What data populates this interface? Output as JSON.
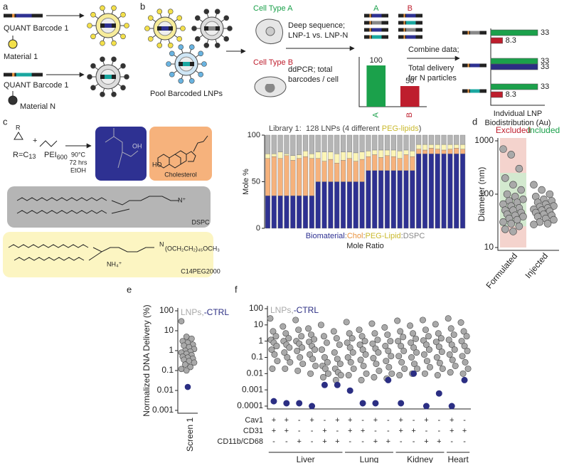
{
  "diagram": {
    "panel_labels": [
      "a",
      "b",
      "c",
      "d",
      "e",
      "f"
    ],
    "a": {
      "barcode_1": "QUANT Barcode 1",
      "material_1": "Material 1",
      "barcode_n": "QUANT Barcode 1",
      "material_n": "Material N"
    },
    "b": {
      "pool": "Pool Barcoded LNPs",
      "cell_a": "Cell Type A",
      "cell_b": "Cell Type B",
      "deep_sequence": [
        "Deep sequence;",
        "LNP-1 vs. LNP-N"
      ],
      "ddpcr": [
        "ddPCR; total",
        "barcodes / cell"
      ],
      "combine": [
        "Combine data;",
        "Total delivery",
        "for N particles"
      ]
    },
    "c": {
      "r_atom": "R",
      "r_group": "R=C",
      "r_subscript": "13",
      "plus": "+",
      "pei": "PEI",
      "pei_subscript": "600",
      "conditions": [
        "90°C",
        "72 hrs",
        "EtOH"
      ],
      "hydroxyl": "OH",
      "hydroxyl_2": "HO",
      "cholesterol": "Cholesterol",
      "dspc": "DSPC",
      "peg": "C14PEG2000",
      "peg_chain": "(OCH₂CH₂)₄₅OCH₃",
      "ammonium": "NH₄⁺",
      "amine": "N",
      "nitrogen_plus": "N⁺"
    }
  },
  "chart_data": [
    {
      "type": "bar",
      "categories": [
        "A",
        "B"
      ],
      "values": [
        100,
        50
      ],
      "colors": [
        "#1ba14b",
        "#be1e2d"
      ],
      "ylim": [
        0,
        100
      ]
    },
    {
      "type": "barh",
      "values": [
        33,
        8.3,
        33,
        33,
        33,
        8.3
      ],
      "colors": [
        "#1ba14b",
        "#be1e2d",
        "#1ba14b",
        "#2b2e83",
        "#1ba14b",
        "#be1e2d"
      ],
      "xlim": [
        0,
        33
      ],
      "xlabel": [
        "Indvidual LNP",
        "Biodistribution (Au)"
      ]
    },
    {
      "type": "stacked_bar",
      "title_runs": [
        {
          "text": "Library 1:  128 LNPs (4 different ",
          "color": "#444"
        },
        {
          "text": "PEG-lipids",
          "color": "#c9b92c"
        },
        {
          "text": ")",
          "color": "#444"
        }
      ],
      "ylabel": "Mole %",
      "xlabel": "Mole Ratio",
      "ylim": [
        0,
        100
      ],
      "yticks": [
        0,
        50,
        100
      ],
      "legend_separator": ":",
      "series": [
        {
          "name": "Biomaterial",
          "color": "#2e3192",
          "text_color": "#2e3192",
          "values": [
            35,
            35,
            35,
            35,
            35,
            35,
            35,
            35,
            50,
            50,
            50,
            50,
            50,
            50,
            50,
            50,
            62,
            62,
            62,
            62,
            62,
            62,
            62,
            62,
            80,
            80,
            80,
            80,
            80,
            80,
            80,
            80
          ]
        },
        {
          "name": "Chol",
          "color": "#f6b27c",
          "text_color": "#e8913c",
          "values": [
            40,
            42,
            40,
            43,
            38,
            40,
            42,
            40,
            25,
            22,
            24,
            20,
            23,
            25,
            22,
            24,
            15,
            17,
            14,
            16,
            15,
            13,
            17,
            15,
            5,
            4,
            6,
            5,
            4,
            5,
            6,
            5
          ]
        },
        {
          "name": "PEG-Lipid",
          "color": "#fcf5b6",
          "text_color": "#c9b92c",
          "values": [
            5,
            3,
            7,
            2,
            5,
            4,
            6,
            5,
            7,
            10,
            8,
            10,
            9,
            7,
            9,
            8,
            6,
            5,
            8,
            6,
            7,
            8,
            5,
            6,
            5,
            6,
            4,
            5,
            6,
            5,
            4,
            5
          ]
        },
        {
          "name": "DSPC",
          "color": "#b5b5b5",
          "text_color": "#888888",
          "values": [
            20,
            20,
            18,
            20,
            22,
            21,
            17,
            20,
            18,
            18,
            18,
            20,
            18,
            18,
            19,
            18,
            17,
            16,
            16,
            16,
            16,
            17,
            16,
            17,
            10,
            10,
            10,
            10,
            10,
            10,
            10,
            10
          ]
        }
      ]
    },
    {
      "type": "strip",
      "log": true,
      "ylabel": "Diameter (nm)",
      "categories": [
        "Formulated",
        "Injected"
      ],
      "ylim": [
        10,
        1000
      ],
      "yticks": [
        10,
        100,
        1000
      ],
      "regions": [
        {
          "label": "Excluded",
          "color": "#be1e2d",
          "fill": "#f4d3cd"
        },
        {
          "label": "Included",
          "color": "#1ba14b",
          "fill": "#d3e9cf",
          "range": [
            25,
            250
          ]
        }
      ],
      "series": [
        {
          "color": "#a9a9a9",
          "values": [
            [
              700,
              550,
              300,
              200,
              150,
              120,
              100,
              90,
              80,
              75,
              70,
              65,
              60,
              55,
              50,
              50,
              45,
              42,
              40,
              38,
              35,
              33,
              30,
              28,
              25,
              22,
              20
            ],
            [
              150,
              120,
              100,
              90,
              80,
              75,
              70,
              65,
              60,
              58,
              55,
              52,
              50,
              48,
              45,
              42,
              40,
              38,
              35,
              33,
              30,
              28,
              27
            ]
          ]
        }
      ]
    },
    {
      "type": "strip",
      "log": true,
      "ylabel": "Normalized DNA Delivery (%)",
      "categories": [
        "Screen 1"
      ],
      "ylim": [
        0.001,
        100
      ],
      "yticks": [
        0.001,
        0.01,
        0.1,
        1,
        10,
        100
      ],
      "legend_separator": ",",
      "series": [
        {
          "name": "LNPs",
          "color": "#a9a9a9",
          "values": [
            [
              30,
              5,
              4,
              3,
              2.5,
              2,
              1.8,
              1.5,
              1.2,
              1,
              0.9,
              0.8,
              0.7,
              0.6,
              0.5,
              0.45,
              0.4,
              0.35,
              0.3,
              0.25,
              0.2,
              0.15,
              0.12,
              0.1
            ]
          ]
        },
        {
          "name": "-CTRL",
          "color": "#2b2e83",
          "values": [
            [
              0.015
            ]
          ]
        }
      ]
    },
    {
      "type": "strip",
      "log": true,
      "categories": [
        null,
        null,
        null,
        null,
        null,
        null,
        null,
        null,
        null,
        null,
        null,
        null,
        null,
        null,
        null,
        null
      ],
      "ylim": [
        0.0001,
        100
      ],
      "yticks": [
        0.0001,
        0.001,
        0.01,
        0.1,
        1,
        10,
        100
      ],
      "legend_separator": ",",
      "series": [
        {
          "name": "LNPs",
          "color": "#a9a9a9",
          "values": [
            [
              25,
              4,
              2,
              1.2,
              0.8,
              0.5,
              0.3,
              0.15,
              0.06,
              0.02
            ],
            [
              8,
              3,
              1.5,
              1,
              0.6,
              0.4,
              0.2,
              0.1,
              0.05,
              0.02
            ],
            [
              20,
              5,
              2,
              1,
              0.7,
              0.4,
              0.25,
              0.1,
              0.04,
              0.015
            ],
            [
              6,
              2.5,
              1.3,
              0.9,
              0.5,
              0.3,
              0.15,
              0.08,
              0.03,
              0.01
            ],
            [
              10,
              2,
              0.8,
              0.3,
              0.1,
              0.05,
              0.03,
              0.02,
              0.01,
              0.006
            ],
            [
              4,
              1.5,
              0.6,
              0.2,
              0.08,
              0.04,
              0.02,
              0.012,
              0.008,
              0.004
            ],
            [
              15,
              3,
              1.5,
              0.8,
              0.4,
              0.2,
              0.1,
              0.05,
              0.02,
              0.008
            ],
            [
              5,
              2,
              1,
              0.6,
              0.3,
              0.15,
              0.07,
              0.03,
              0.01,
              0.004
            ],
            [
              12,
              3,
              1.2,
              0.7,
              0.35,
              0.2,
              0.09,
              0.04,
              0.015,
              0.006
            ],
            [
              7,
              2.5,
              1,
              0.5,
              0.25,
              0.12,
              0.06,
              0.025,
              0.01,
              0.005
            ],
            [
              18,
              4,
              1.8,
              1,
              0.5,
              0.25,
              0.12,
              0.05,
              0.02,
              0.008
            ],
            [
              9,
              3,
              1.4,
              0.8,
              0.4,
              0.2,
              0.1,
              0.04,
              0.02,
              0.01
            ],
            [
              20,
              5,
              2,
              1.1,
              0.6,
              0.3,
              0.15,
              0.06,
              0.025,
              0.01
            ],
            [
              11,
              3,
              1.5,
              0.9,
              0.45,
              0.22,
              0.1,
              0.045,
              0.02,
              0.008
            ],
            [
              25,
              6,
              2.5,
              1.2,
              0.6,
              0.3,
              0.15,
              0.07,
              0.03,
              0.012
            ],
            [
              14,
              4,
              2,
              1,
              0.5,
              0.25,
              0.12,
              0.05,
              0.02,
              0.01
            ]
          ]
        },
        {
          "name": "-CTRL",
          "color": "#2b2e83",
          "values": [
            [
              0.0002
            ],
            [
              0.00015
            ],
            [
              0.00015
            ],
            [
              0.0001
            ],
            [
              0.002
            ],
            [
              0.002
            ],
            [
              0.0009
            ],
            [
              0.00015
            ],
            [
              0.00015
            ],
            [
              0.004
            ],
            [
              0.00015
            ],
            [
              0.01
            ],
            [
              0.0001
            ],
            [
              0.0006
            ],
            [
              0.0001
            ],
            [
              0.004
            ]
          ]
        }
      ],
      "conditions": [
        {
          "label": "Cav1",
          "signs": [
            "+",
            "+",
            "-",
            "+",
            "-",
            "+",
            "+",
            "-",
            "+",
            "-",
            "+",
            "-",
            "+",
            "-",
            "+",
            "-"
          ]
        },
        {
          "label": "CD31",
          "signs": [
            "+",
            "+",
            "-",
            "-",
            "+",
            "-",
            "+",
            "+",
            "-",
            "-",
            "+",
            "+",
            "-",
            "-",
            "+",
            "+"
          ]
        },
        {
          "label": "CD11b/CD68",
          "signs": [
            "-",
            "-",
            "+",
            "-",
            "+",
            "+",
            "-",
            "-",
            "+",
            "+",
            "-",
            "-",
            "+",
            "+",
            "-",
            "-"
          ]
        }
      ],
      "groups": [
        {
          "label": "Liver",
          "count": 6
        },
        {
          "label": "Lung",
          "count": 4
        },
        {
          "label": "Kidney",
          "count": 4
        },
        {
          "label": "Heart",
          "count": 2
        }
      ]
    }
  ]
}
